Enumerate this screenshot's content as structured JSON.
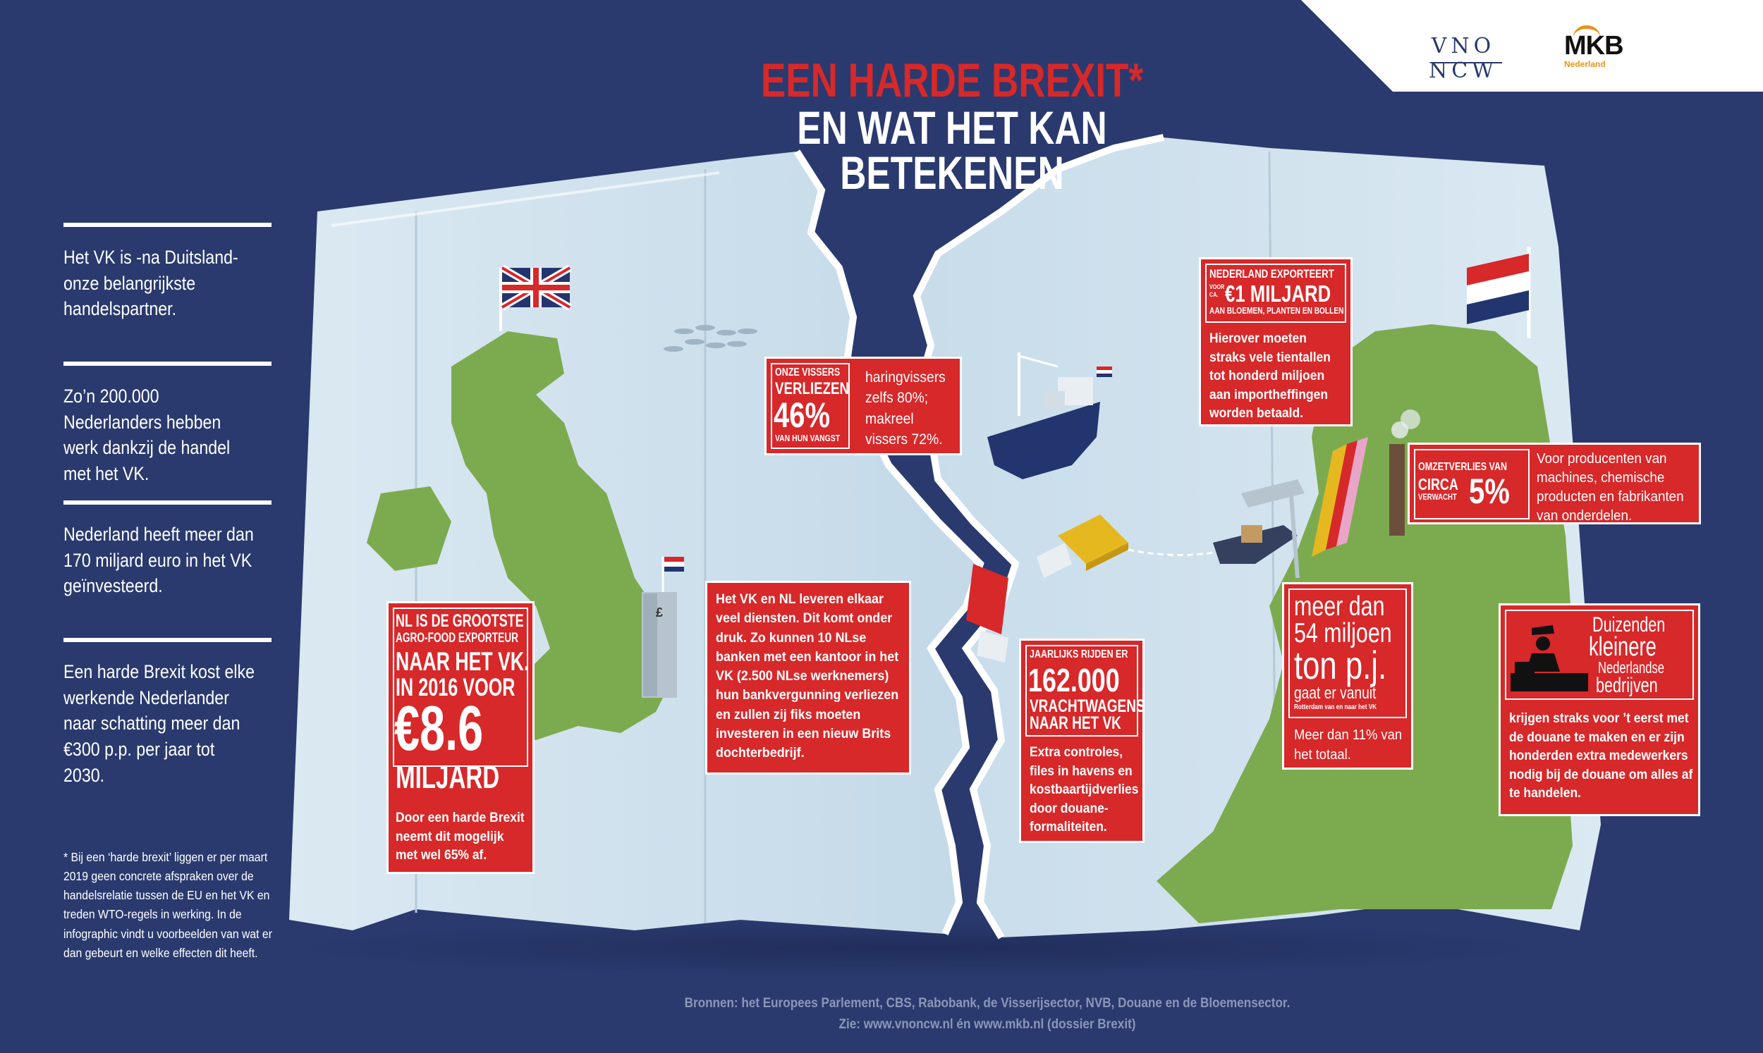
{
  "logos": {
    "vno": "VNO NCW",
    "mkb": "MKB",
    "mkb_sub": "Nederland"
  },
  "title": {
    "line1": "EEN HARDE BREXIT*",
    "line2": "EN WAT HET KAN",
    "line3": "BETEKENEN"
  },
  "sidebar": {
    "facts": [
      "Het VK is -na Duitsland- onze belangrijkste handelspartner.",
      "Zo’n 200.000 Nederlanders hebben werk dankzij de handel met het VK.",
      "Nederland heeft meer dan 170 miljard euro in het VK geïnvesteerd.",
      "Een harde Brexit kost elke werkende Nederlander naar schatting meer dan €300 p.p. per jaar tot 2030."
    ],
    "footnote": "* Bij een ‘harde brexit’ liggen er per maart 2019 geen concrete afspraken over de handelsrelatie tussen de EU en het VK en treden WTO-regels in werking. In de infographic vindt u voorbeelden van wat er dan gebeurt en welke effecten dit heeft."
  },
  "boxes": {
    "agrofood": {
      "line1": "NL IS DE GROOTSTE",
      "line2": "AGRO-FOOD EXPORTEUR",
      "line3": "NAAR HET VK.",
      "line4": "IN 2016 VOOR",
      "amount": "€8.6",
      "unit": "MILJARD",
      "body": "Door een harde Brexit neemt dit mogelijk met wel 65% af."
    },
    "vissers": {
      "line1": "ONZE VISSERS",
      "line2": "VERLIEZEN",
      "percent": "46%",
      "line3": "VAN HUN VANGST",
      "side": "haringvissers zelfs 80%; makreel vissers 72%."
    },
    "diensten": {
      "body": "Het VK en NL leveren elkaar veel diensten. Dit komt onder druk. Zo kunnen 10 NLse banken met een kantoor in het VK (2.500 NLse werknemers) hun bankvergunning verliezen en zullen zij fiks moeten investeren in een nieuw Brits dochterbedrijf."
    },
    "vrachtwagens": {
      "line1": "JAARLIJKS RIJDEN ER",
      "number": "162.000",
      "line2": "VRACHTWAGENS",
      "line3": "NAAR HET VK",
      "body": "Extra controles, files in havens en kostbaartijdverlies door douane-formaliteiten."
    },
    "bloemen": {
      "line1": "NEDERLAND EXPORTEERT",
      "voor": "VOOR",
      "ca": "CA.",
      "amount": "€1 MILJARD",
      "line2": "AAN BLOEMEN, PLANTEN EN BOLLEN",
      "body": "Hierover moeten straks vele tientallen tot honderd miljoen aan importheffingen worden betaald."
    },
    "omzet": {
      "line1": "OMZETVERLIES VAN",
      "circa": "CIRCA",
      "verwacht": "VERWACHT",
      "percent": "5%",
      "side": "Voor producenten van machines, chemische producten en fabrikanten van onderdelen."
    },
    "ton": {
      "line1": "meer dan",
      "line2": "54 miljoen",
      "line3": "ton p.j.",
      "line4": "gaat er vanuit",
      "line5": "Rotterdam van en naar het VK",
      "body": "Meer dan 11% van het totaal."
    },
    "bedrijven": {
      "line1": "Duizenden",
      "line2": "kleinere",
      "line3": "Nederlandse",
      "line4": "bedrijven",
      "body": "krijgen straks voor ’t eerst met de douane te maken en er zijn honderden extra medewerkers nodig bij de douane om alles af te handelen."
    }
  },
  "icons": [
    "uk-flag-icon",
    "nl-flag-icon",
    "ship-icon",
    "truck-icon",
    "crane-icon",
    "factory-icon",
    "customs-officer-icon",
    "bank-tower-icon",
    "fish-school-icon"
  ],
  "sources": {
    "line1": "Bronnen: het Europees Parlement, CBS, Rabobank, de Visserijsector, NVB, Douane en de Bloemensector.",
    "line2": "Zie: www.vnoncw.nl én www.mkb.nl (dossier Brexit)"
  },
  "colors": {
    "background": "#2a3a6e",
    "red": "#d7282a",
    "land_green": "#7cab4f",
    "map_paper": "#cfe1ec",
    "sea": "#b9d4e6"
  }
}
